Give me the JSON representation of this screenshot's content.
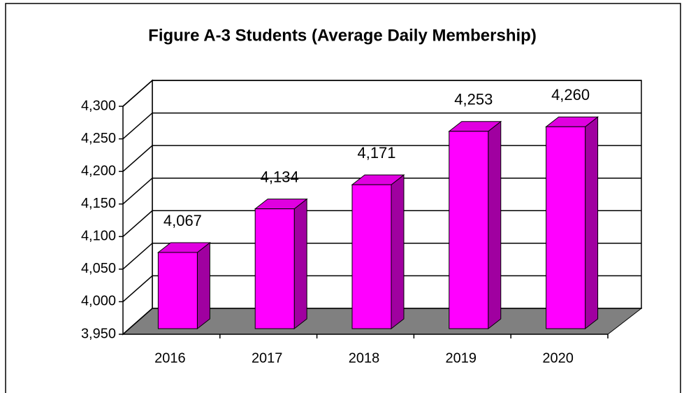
{
  "chart_data": {
    "type": "bar",
    "title": "Figure A-3 Students (Average Daily Membership)",
    "categories": [
      "2016",
      "2017",
      "2018",
      "2019",
      "2020"
    ],
    "values": [
      4067,
      4134,
      4171,
      4253,
      4260
    ],
    "value_labels": [
      "4,067",
      "4,134",
      "4,171",
      "4,253",
      "4,260"
    ],
    "color": "#ff00ff",
    "ylim": [
      3950,
      4300
    ],
    "yticks": [
      {
        "value": 3950,
        "label": "3,950"
      },
      {
        "value": 4000,
        "label": "4,000"
      },
      {
        "value": 4050,
        "label": "4,050"
      },
      {
        "value": 4100,
        "label": "4,100"
      },
      {
        "value": 4150,
        "label": "4,150"
      },
      {
        "value": 4200,
        "label": "4,200"
      },
      {
        "value": 4250,
        "label": "4,250"
      },
      {
        "value": 4300,
        "label": "4,300"
      }
    ],
    "grid": true
  }
}
